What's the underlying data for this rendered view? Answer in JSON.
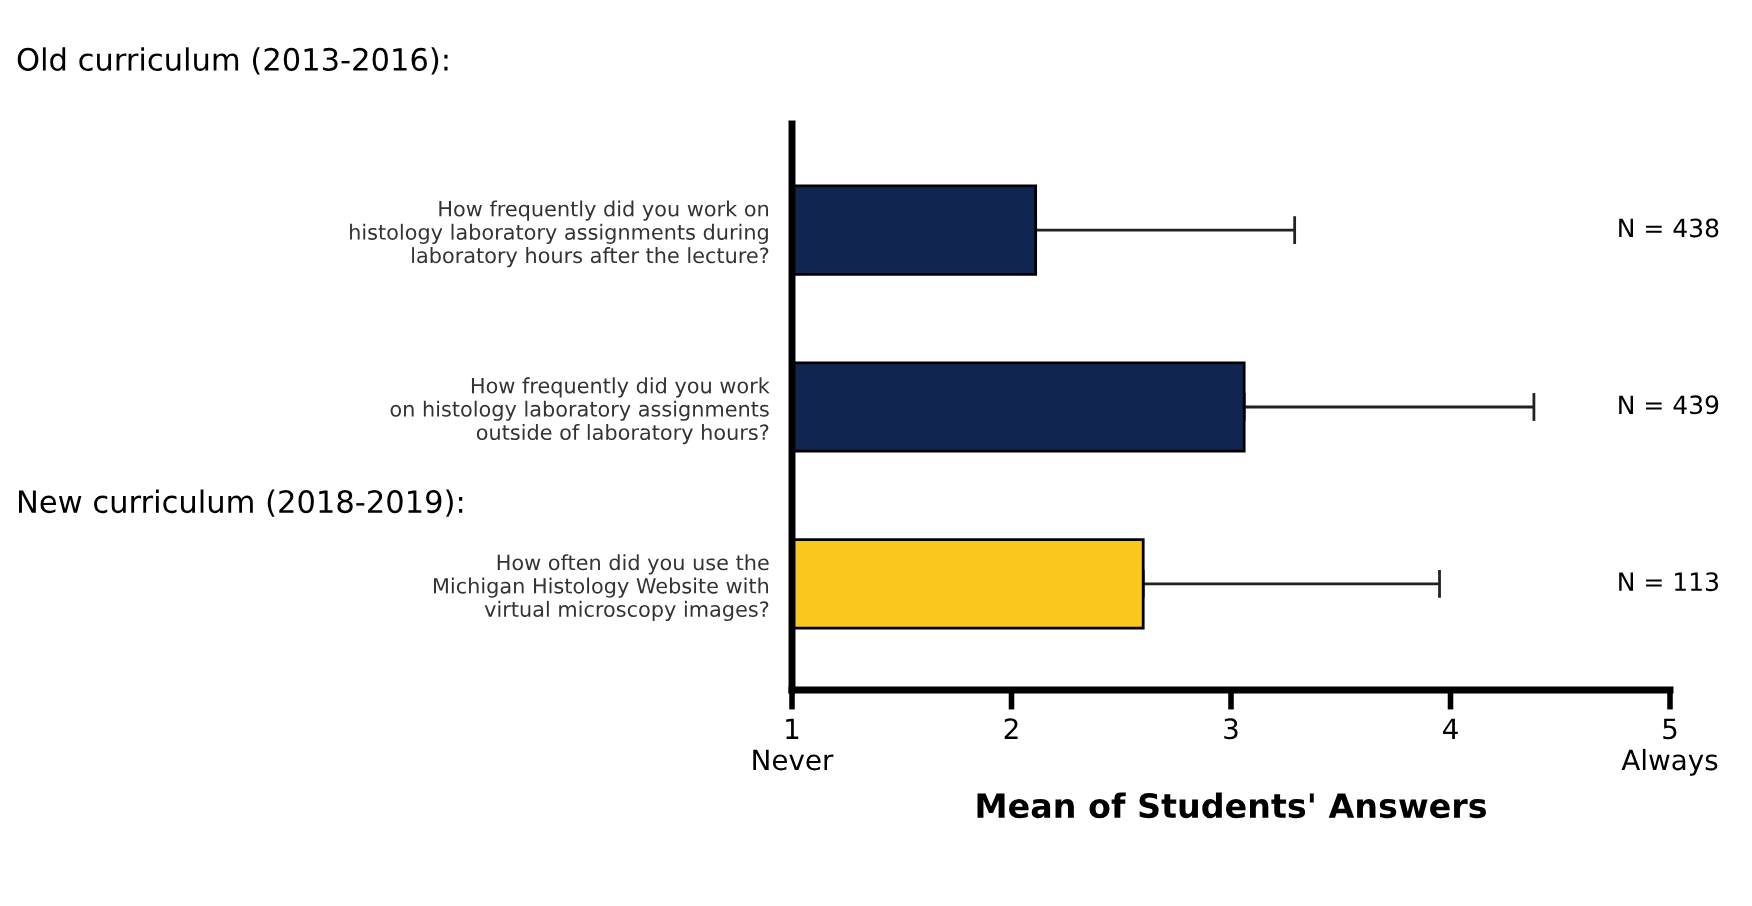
{
  "chart_data": {
    "type": "bar",
    "orientation": "horizontal",
    "categories": [
      "How frequently did you work on\nhistology laboratory assignments during\nlaboratory hours after the lecture?",
      "How frequently did you work\non histology laboratory assignments\noutside of laboratory hours?",
      "How often did you use the\nMichigan Histology Website with\nvirtual microscopy images?"
    ],
    "values": [
      2.11,
      3.06,
      2.6
    ],
    "colors": [
      "#102650",
      "#102650",
      "#f8c81c"
    ],
    "errors": [
      [
        2.11,
        3.29
      ],
      [
        3.06,
        4.38
      ],
      [
        2.6,
        3.95
      ]
    ],
    "xlim": [
      1,
      5
    ],
    "xticks": [
      {
        "value": 1,
        "label": "1\nNever"
      },
      2,
      3,
      4,
      {
        "value": 5,
        "label": "5\nAlways"
      }
    ],
    "xlabel": "Mean of Students' Answers",
    "annotations": [
      "Old curriculum (2013-2016):",
      "New curriculum (2018-2019):",
      "N = 438",
      "N = 439",
      "N = 113"
    ],
    "grid": false,
    "legend": false
  }
}
